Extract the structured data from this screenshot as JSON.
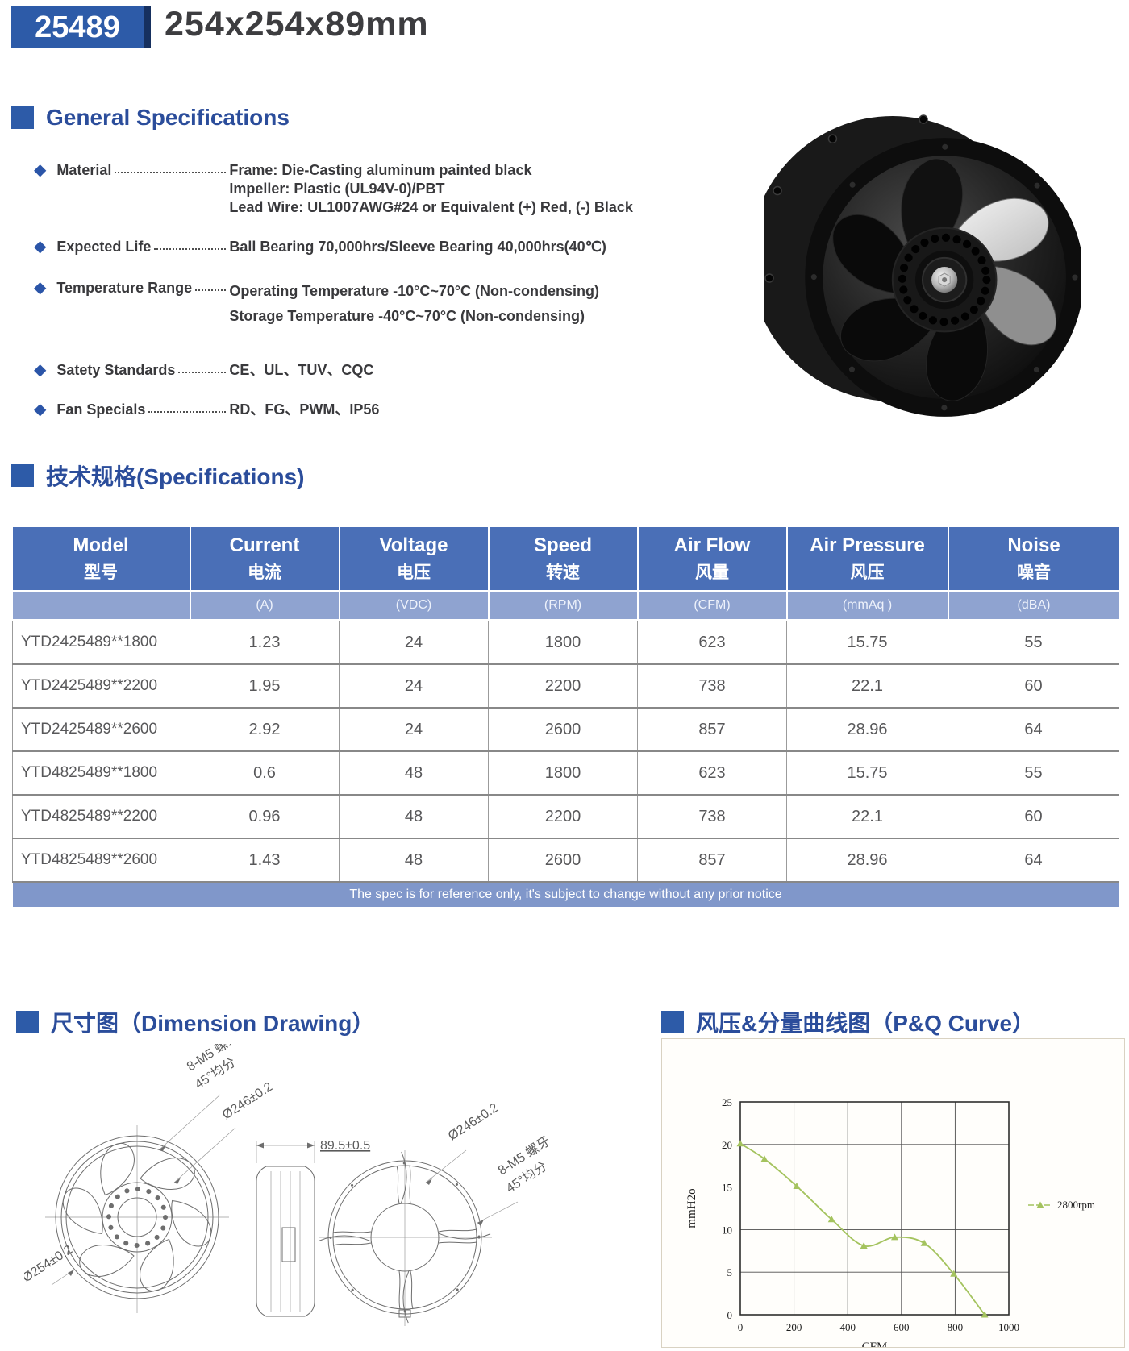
{
  "header": {
    "model_code": "25489",
    "size_label": "254x254x89mm"
  },
  "section_titles": {
    "general": "General Specifications",
    "specs": "技术规格(Specifications)",
    "dimension": "尺寸图（Dimension Drawing）",
    "pq_curve": "风压&分量曲线图（P&Q Curve）"
  },
  "general_specs": [
    {
      "label": "Material",
      "lines": [
        "Frame: Die-Casting aluminum painted black",
        "Impeller: Plastic (UL94V-0)/PBT",
        "Lead Wire: UL1007AWG#24 or Equivalent (+) Red, (-) Black"
      ]
    },
    {
      "label": "Expected Life",
      "lines": [
        "Ball Bearing 70,000hrs/Sleeve Bearing 40,000hrs(40℃)"
      ]
    },
    {
      "label": "Temperature Range",
      "lines": [
        "Operating Temperature -10°C~70°C (Non-condensing)",
        "Storage Temperature -40°C~70°C (Non-condensing)"
      ]
    },
    {
      "label": "Satety Standards",
      "lines": [
        "CE、UL、TUV、CQC"
      ]
    },
    {
      "label": "Fan Specials",
      "lines": [
        "RD、FG、PWM、IP56"
      ]
    }
  ],
  "spec_table": {
    "columns": [
      {
        "en": "Model",
        "zh": "型号",
        "unit": ""
      },
      {
        "en": "Current",
        "zh": "电流",
        "unit": "(A)"
      },
      {
        "en": "Voltage",
        "zh": "电压",
        "unit": "(VDC)"
      },
      {
        "en": "Speed",
        "zh": "转速",
        "unit": "(RPM)"
      },
      {
        "en": "Air Flow",
        "zh": "风量",
        "unit": "(CFM)"
      },
      {
        "en": "Air Pressure",
        "zh": "风压",
        "unit": "(mmAq )"
      },
      {
        "en": "Noise",
        "zh": "噪音",
        "unit": "(dBA)"
      }
    ],
    "rows": [
      [
        "YTD2425489**1800",
        "1.23",
        "24",
        "1800",
        "623",
        "15.75",
        "55"
      ],
      [
        "YTD2425489**2200",
        "1.95",
        "24",
        "2200",
        "738",
        "22.1",
        "60"
      ],
      [
        "YTD2425489**2600",
        "2.92",
        "24",
        "2600",
        "857",
        "28.96",
        "64"
      ],
      [
        "YTD4825489**1800",
        "0.6",
        "48",
        "1800",
        "623",
        "15.75",
        "55"
      ],
      [
        "YTD4825489**2200",
        "0.96",
        "48",
        "2200",
        "738",
        "22.1",
        "60"
      ],
      [
        "YTD4825489**2600",
        "1.43",
        "48",
        "2600",
        "857",
        "28.96",
        "64"
      ]
    ],
    "footer_note": "The spec is for reference only, it's subject to change without any prior notice"
  },
  "dimension_drawing": {
    "front_bolt_line1": "8-M5 螺牙",
    "front_bolt_line2": "45°均分",
    "front_dia": "Ø246±0.2",
    "frame_dia": "Ø254±0.2",
    "side_width": "89.5±0.5",
    "rear_dia": "Ø246±0.2",
    "rear_bolt_line1": "8-M5 螺牙",
    "rear_bolt_line2": "45°均分"
  },
  "chart_data": {
    "type": "line",
    "title": "",
    "xlabel": "CFM",
    "ylabel": "mmH2o",
    "xlim": [
      0,
      1000
    ],
    "ylim": [
      0,
      25
    ],
    "xticks": [
      0,
      200,
      400,
      600,
      800,
      1000
    ],
    "yticks": [
      0,
      5,
      10,
      15,
      20,
      25
    ],
    "grid": true,
    "legend_position": "right",
    "series": [
      {
        "name": "2800rpm",
        "color": "#a4c35e",
        "x": [
          0,
          90,
          210,
          340,
          460,
          575,
          685,
          795,
          910
        ],
        "y": [
          20.1,
          18.3,
          15.1,
          11.2,
          8.1,
          9.1,
          8.4,
          4.8,
          0
        ]
      }
    ]
  },
  "colors": {
    "accent_blue": "#2d5ba8",
    "navy": "#16305f",
    "heading_blue": "#2b4d9b",
    "table_header_bg": "#4a6fb7",
    "table_units_bg": "#8fa3d0",
    "table_footer_bg": "#8097ca",
    "curve_green": "#a4c35e"
  }
}
